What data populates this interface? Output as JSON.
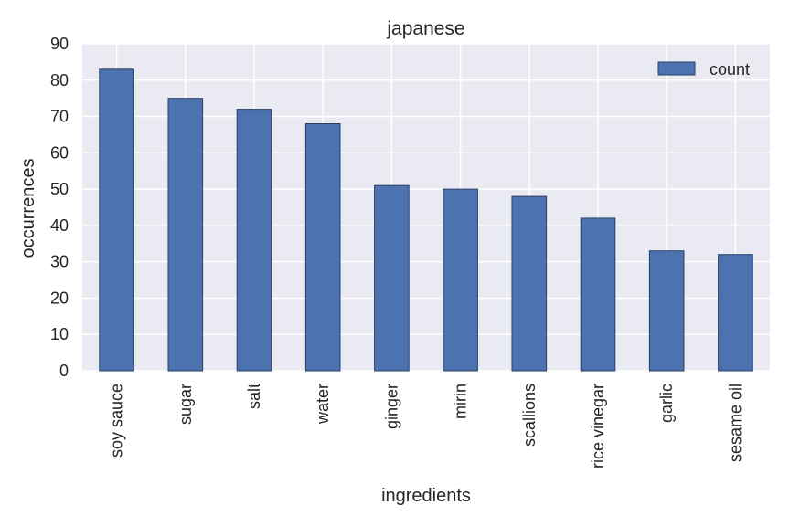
{
  "chart_data": {
    "type": "bar",
    "title": "japanese",
    "xlabel": "ingredients",
    "ylabel": "occurrences",
    "categories": [
      "soy sauce",
      "sugar",
      "salt",
      "water",
      "ginger",
      "mirin",
      "scallions",
      "rice vinegar",
      "garlic",
      "sesame oil"
    ],
    "series": [
      {
        "name": "count",
        "values": [
          83,
          75,
          72,
          68,
          51,
          50,
          48,
          42,
          33,
          32
        ]
      }
    ],
    "ylim": [
      0,
      90
    ],
    "yticks": [
      0,
      10,
      20,
      30,
      40,
      50,
      60,
      70,
      80,
      90
    ],
    "grid": true,
    "legend_position": "top-right",
    "colors": {
      "bar": "#4c72b0",
      "bar_edge": "#2a3f66",
      "plot_background": "#eaeaf2",
      "grid": "#ffffff"
    }
  }
}
